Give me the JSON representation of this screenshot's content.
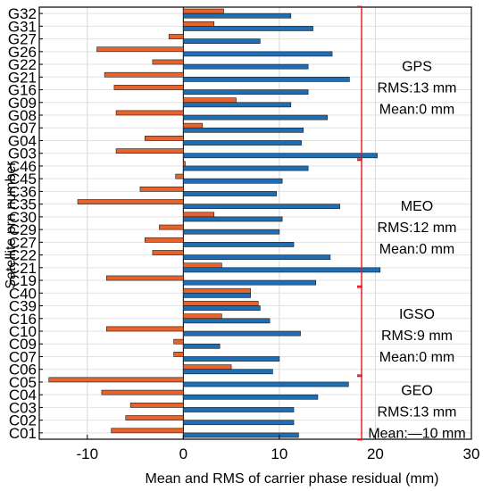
{
  "chart_data": {
    "type": "bar",
    "orientation": "horizontal",
    "xlabel": "Mean and RMS of carrier phase residual (mm)",
    "ylabel": "Satellite prn number",
    "xlim": [
      -15,
      30
    ],
    "xticks": [
      -10,
      0,
      10,
      20,
      30
    ],
    "grid": true,
    "colors": {
      "mean": "#e8622c",
      "rms": "#1f6eb4",
      "bracket": "#e0141e"
    },
    "categories": [
      "C01",
      "C02",
      "C03",
      "C04",
      "C05",
      "C06",
      "C07",
      "C09",
      "C10",
      "C16",
      "C39",
      "C40",
      "C19",
      "C21",
      "C22",
      "C27",
      "C29",
      "C30",
      "C35",
      "C36",
      "C45",
      "C46",
      "G03",
      "G04",
      "G07",
      "G08",
      "G09",
      "G16",
      "G21",
      "G22",
      "G26",
      "G27",
      "G31",
      "G32"
    ],
    "series": [
      {
        "key": "mean",
        "values": [
          -7.5,
          -6,
          -5.5,
          -8.5,
          -14,
          5,
          -1,
          -1,
          -8,
          4,
          7.8,
          7,
          -8,
          4,
          -3.2,
          -4,
          -2.5,
          3.2,
          -11,
          -4.5,
          -0.8,
          0.2,
          -7,
          -4,
          2,
          -7,
          5.5,
          -7.2,
          -8.2,
          -3.2,
          -9,
          -1.5,
          3.2,
          4.2
        ]
      },
      {
        "key": "rms",
        "values": [
          12,
          11.5,
          11.5,
          14,
          17.2,
          9.3,
          10,
          3.8,
          12.2,
          9,
          8,
          7,
          13.8,
          20.5,
          15.3,
          11.5,
          10,
          10.3,
          16.3,
          9.7,
          10.3,
          13,
          20.2,
          12.3,
          12.5,
          15,
          11.2,
          13,
          17.3,
          13,
          15.5,
          8,
          13.5,
          11.2
        ]
      }
    ],
    "groups": [
      {
        "name": "GPS",
        "rms": "RMS:13 mm",
        "mean": "Mean:0 mm",
        "from": "G32",
        "to": "G03"
      },
      {
        "name": "MEO",
        "rms": "RMS:12 mm",
        "mean": "Mean:0 mm",
        "from": "C46",
        "to": "C19"
      },
      {
        "name": "IGSO",
        "rms": "RMS:9 mm",
        "mean": "Mean:0 mm",
        "from": "C40",
        "to": "C06"
      },
      {
        "name": "GEO",
        "rms": "RMS:13 mm",
        "mean": "Mean:—10 mm",
        "from": "C05",
        "to": "C01"
      }
    ]
  }
}
